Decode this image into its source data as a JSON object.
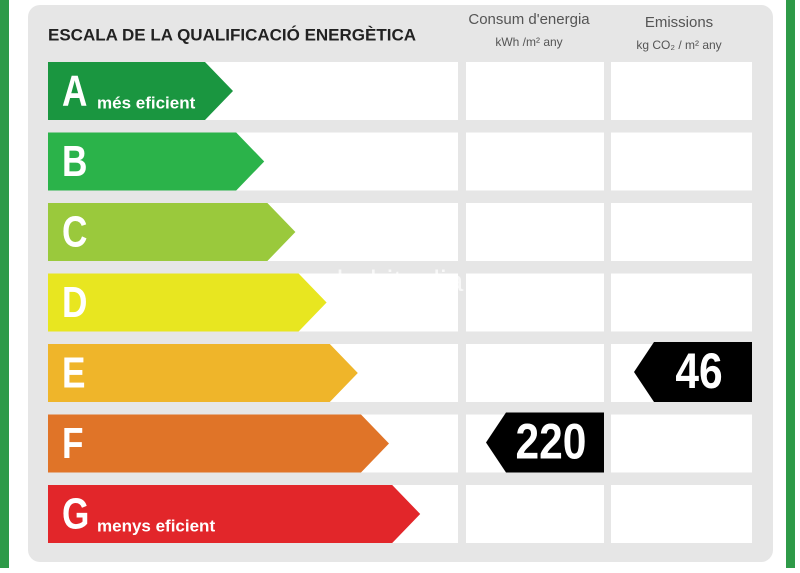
{
  "header": {
    "title": "ESCALA DE LA QUALIFICACIÓ ENERGÈTICA",
    "columns": [
      {
        "title": "Consum d'energia",
        "unit": "kWh /m² any"
      },
      {
        "title": "Emissions",
        "unit": "kg CO₂ / m² any"
      }
    ]
  },
  "grades": [
    {
      "letter": "A",
      "note": "més eficient",
      "color": "#1a9640"
    },
    {
      "letter": "B",
      "color": "#2bb34a"
    },
    {
      "letter": "C",
      "color": "#9ac93c"
    },
    {
      "letter": "D",
      "color": "#e8e620"
    },
    {
      "letter": "E",
      "color": "#efb52a"
    },
    {
      "letter": "F",
      "color": "#e07428"
    },
    {
      "letter": "G",
      "note": "menys eficient",
      "color": "#e2262a"
    }
  ],
  "ratings": [
    {
      "grade": "F",
      "value": 220
    },
    {
      "grade": "E",
      "value": 46
    }
  ],
  "watermark": "habitaclia"
}
